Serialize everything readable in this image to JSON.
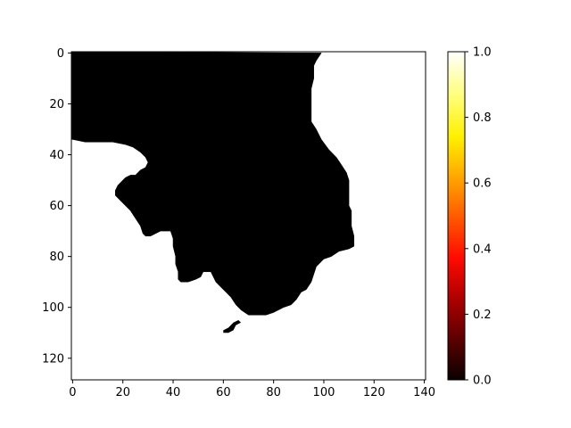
{
  "chart_data": {
    "type": "heatmap",
    "colormap": "hot",
    "image_shape": [
      129,
      141
    ],
    "x_ticks": [
      0,
      20,
      40,
      60,
      80,
      100,
      120,
      140
    ],
    "y_ticks": [
      0,
      20,
      40,
      60,
      80,
      100,
      120
    ],
    "xlim": [
      -0.5,
      140.5
    ],
    "ylim": [
      128.5,
      -0.5
    ],
    "colorbar": {
      "range": [
        0.0,
        1.0
      ],
      "ticks": [
        "0.0",
        "0.2",
        "0.4",
        "0.6",
        "0.8",
        "1.0"
      ]
    },
    "mask_value_inside": 0.0,
    "mask_value_outside": 1.0,
    "mask_outline": [
      [
        0,
        0
      ],
      [
        99,
        0
      ],
      [
        97,
        3
      ],
      [
        96,
        5
      ],
      [
        96,
        10
      ],
      [
        95,
        14
      ],
      [
        95,
        20
      ],
      [
        95,
        27
      ],
      [
        97,
        30
      ],
      [
        99,
        34
      ],
      [
        102,
        38
      ],
      [
        105,
        41
      ],
      [
        107,
        44
      ],
      [
        109,
        47
      ],
      [
        110,
        50
      ],
      [
        110,
        56
      ],
      [
        110,
        60
      ],
      [
        111,
        62
      ],
      [
        111,
        68
      ],
      [
        112,
        72
      ],
      [
        112,
        76
      ],
      [
        110,
        77
      ],
      [
        106,
        78
      ],
      [
        103,
        80
      ],
      [
        100,
        81
      ],
      [
        97,
        84
      ],
      [
        96,
        87
      ],
      [
        95,
        90
      ],
      [
        93,
        93
      ],
      [
        91,
        94
      ],
      [
        89,
        97
      ],
      [
        87,
        99
      ],
      [
        84,
        100
      ],
      [
        80,
        102
      ],
      [
        77,
        103
      ],
      [
        70,
        103
      ],
      [
        67,
        101
      ],
      [
        65,
        99
      ],
      [
        63,
        96
      ],
      [
        61,
        94
      ],
      [
        59,
        92
      ],
      [
        57,
        90
      ],
      [
        56,
        88
      ],
      [
        55,
        86
      ],
      [
        52,
        86
      ],
      [
        51,
        88
      ],
      [
        49,
        89
      ],
      [
        46,
        90
      ],
      [
        43,
        90
      ],
      [
        42,
        89
      ],
      [
        42,
        86
      ],
      [
        41,
        83
      ],
      [
        41,
        80
      ],
      [
        40,
        76
      ],
      [
        40,
        73
      ],
      [
        39,
        70
      ],
      [
        38,
        70
      ],
      [
        35,
        70
      ],
      [
        33,
        71
      ],
      [
        31,
        72
      ],
      [
        29,
        72
      ],
      [
        28,
        71
      ],
      [
        27,
        68
      ],
      [
        25,
        65
      ],
      [
        23,
        62
      ],
      [
        21,
        60
      ],
      [
        19,
        58
      ],
      [
        17,
        56
      ],
      [
        17,
        54
      ],
      [
        18,
        52
      ],
      [
        19,
        51
      ],
      [
        21,
        49
      ],
      [
        23,
        48
      ],
      [
        25,
        48
      ],
      [
        27,
        46
      ],
      [
        29,
        45
      ],
      [
        30,
        43
      ],
      [
        29,
        41
      ],
      [
        27,
        39
      ],
      [
        24,
        37
      ],
      [
        21,
        36
      ],
      [
        16,
        35
      ],
      [
        13,
        35
      ],
      [
        5,
        35
      ],
      [
        0,
        34
      ]
    ],
    "blob_outline": [
      [
        60,
        110
      ],
      [
        62,
        110
      ],
      [
        64,
        109
      ],
      [
        65,
        107
      ],
      [
        67,
        106
      ],
      [
        66,
        105
      ],
      [
        64,
        106
      ],
      [
        62,
        108
      ],
      [
        60,
        109
      ]
    ]
  }
}
